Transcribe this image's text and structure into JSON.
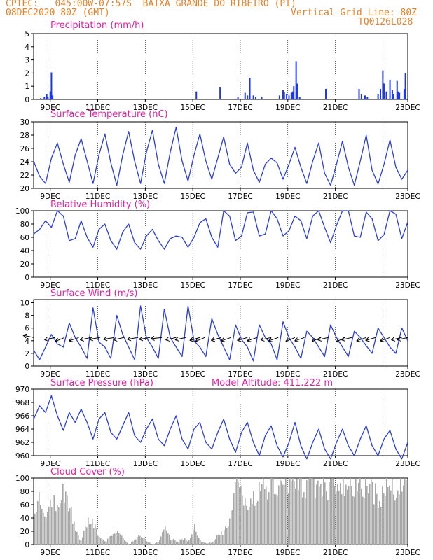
{
  "header": {
    "line1": "CPTEC:   045:00W-07:57S  BAIXA GRANDE DO RIBEIRO (PI)",
    "line2_left": "08DEC2020 80Z (GMT)",
    "line2_right": "Vertical Grid Line: 80Z",
    "line3_right": "TQ0126L028"
  },
  "colors": {
    "header": "#e8822a",
    "title": "#e020a0",
    "line": "#2b3fd6",
    "bars": "#1f38e0",
    "cloud": "#a8a8a8",
    "wind_arrow": "#000000"
  },
  "x_tick_labels": [
    "9DEC",
    "11DEC",
    "13DEC",
    "15DEC",
    "17DEC",
    "19DEC",
    "21DEC",
    "23DEC"
  ],
  "chart_data": [
    {
      "type": "bar",
      "title": "Precipitation (mm/h)",
      "x": "days from 08DEC 08Z, 3-hourly",
      "ylim": [
        0,
        5
      ],
      "yticks": [
        "0",
        "1",
        "2",
        "3",
        "4",
        "5"
      ],
      "points": [
        [
          0.3,
          0.1
        ],
        [
          0.45,
          0.2
        ],
        [
          0.55,
          0.4
        ],
        [
          0.6,
          0.2
        ],
        [
          0.7,
          0.6
        ],
        [
          0.75,
          2.05
        ],
        [
          0.8,
          0.3
        ],
        [
          6.85,
          0.6
        ],
        [
          7.85,
          0.9
        ],
        [
          8.6,
          0.2
        ],
        [
          8.9,
          0.5
        ],
        [
          9.0,
          0.3
        ],
        [
          9.1,
          1.65
        ],
        [
          9.25,
          0.3
        ],
        [
          9.35,
          0.2
        ],
        [
          9.6,
          0.2
        ],
        [
          10.35,
          0.3
        ],
        [
          10.5,
          0.7
        ],
        [
          10.55,
          0.55
        ],
        [
          10.65,
          0.4
        ],
        [
          10.75,
          0.3
        ],
        [
          10.85,
          0.5
        ],
        [
          10.9,
          0.6
        ],
        [
          10.95,
          1.0
        ],
        [
          11.05,
          2.9
        ],
        [
          11.1,
          1.2
        ],
        [
          11.2,
          0.2
        ],
        [
          12.3,
          0.8
        ],
        [
          13.7,
          0.8
        ],
        [
          13.8,
          0.4
        ],
        [
          13.95,
          0.3
        ],
        [
          14.05,
          0.2
        ],
        [
          14.5,
          0.4
        ],
        [
          14.6,
          0.8
        ],
        [
          14.7,
          2.2
        ],
        [
          14.75,
          1.2
        ],
        [
          14.85,
          0.6
        ],
        [
          15.0,
          1.5
        ],
        [
          15.1,
          0.7
        ],
        [
          15.15,
          0.4
        ],
        [
          15.3,
          1.4
        ],
        [
          15.35,
          0.6
        ],
        [
          15.4,
          0.5
        ],
        [
          15.6,
          0.8
        ],
        [
          15.65,
          2.0
        ]
      ]
    },
    {
      "type": "line",
      "title": "Surface Temperature (nC)",
      "ylim": [
        20,
        31
      ],
      "yticks": [
        "20",
        "22",
        "24",
        "26",
        "28",
        "30"
      ],
      "x": [
        0.0,
        0.25,
        0.5,
        0.75,
        1.0,
        1.25,
        1.5,
        1.75,
        2.0,
        2.25,
        2.5,
        2.75,
        3.0,
        3.25,
        3.5,
        3.75,
        4.0,
        4.25,
        4.5,
        4.75,
        5.0,
        5.25,
        5.5,
        5.75,
        6.0,
        6.25,
        6.5,
        6.75,
        7.0,
        7.25,
        7.5,
        7.75,
        8.0,
        8.25,
        8.5,
        8.75,
        9.0,
        9.25,
        9.5,
        9.75,
        10.0,
        10.25,
        10.5,
        10.75,
        11.0,
        11.25,
        11.5,
        11.75,
        12.0,
        12.25,
        12.5,
        12.75,
        13.0,
        13.25,
        13.5,
        13.75,
        14.0,
        14.25,
        14.5,
        14.75,
        15.0,
        15.25,
        15.5,
        15.75
      ],
      "values": [
        24.5,
        22.0,
        20.8,
        25.0,
        27.5,
        24.0,
        21.0,
        25.5,
        28.2,
        24.5,
        20.8,
        25.5,
        29.0,
        24.2,
        20.5,
        25.5,
        29.4,
        24.5,
        20.8,
        26.0,
        29.6,
        24.0,
        20.8,
        26.0,
        30.1,
        24.5,
        21.2,
        25.5,
        29.0,
        24.5,
        21.5,
        25.0,
        28.5,
        24.0,
        22.5,
        23.5,
        27.5,
        23.0,
        21.0,
        24.0,
        25.0,
        24.2,
        21.5,
        24.0,
        26.8,
        23.5,
        20.8,
        24.5,
        27.5,
        22.5,
        20.5,
        24.0,
        27.8,
        23.5,
        20.5,
        24.5,
        28.8,
        23.0,
        20.7,
        24.0,
        28.0,
        23.5,
        21.5,
        23.0
      ]
    },
    {
      "type": "line",
      "title": "Relative Humidity (%)",
      "ylim": [
        0,
        100
      ],
      "yticks": [
        "0",
        "20",
        "40",
        "60",
        "80",
        "100"
      ],
      "x": [
        0.0,
        0.25,
        0.5,
        0.75,
        1.0,
        1.25,
        1.5,
        1.75,
        2.0,
        2.25,
        2.5,
        2.75,
        3.0,
        3.25,
        3.5,
        3.75,
        4.0,
        4.25,
        4.5,
        4.75,
        5.0,
        5.25,
        5.5,
        5.75,
        6.0,
        6.25,
        6.5,
        6.75,
        7.0,
        7.25,
        7.5,
        7.75,
        8.0,
        8.25,
        8.5,
        8.75,
        9.0,
        9.25,
        9.5,
        9.75,
        10.0,
        10.25,
        10.5,
        10.75,
        11.0,
        11.25,
        11.5,
        11.75,
        12.0,
        12.25,
        12.5,
        12.75,
        13.0,
        13.25,
        13.5,
        13.75,
        14.0,
        14.25,
        14.5,
        14.75,
        15.0,
        15.25,
        15.5,
        15.75
      ],
      "values": [
        65,
        72,
        85,
        75,
        100,
        92,
        55,
        58,
        85,
        60,
        45,
        72,
        80,
        55,
        42,
        68,
        80,
        52,
        42,
        62,
        72,
        55,
        42,
        58,
        62,
        60,
        45,
        60,
        82,
        88,
        60,
        45,
        100,
        92,
        55,
        62,
        97,
        98,
        62,
        65,
        100,
        88,
        62,
        70,
        92,
        85,
        58,
        92,
        100,
        75,
        52,
        78,
        100,
        100,
        62,
        60,
        98,
        88,
        55,
        64,
        100,
        95,
        58,
        83
      ]
    },
    {
      "type": "line",
      "title": "Surface Wind (m/s)",
      "ylim": [
        0,
        10.5
      ],
      "yticks": [
        "0",
        "2",
        "4",
        "6",
        "8",
        "10"
      ],
      "x": [
        0.0,
        0.25,
        0.5,
        0.75,
        1.0,
        1.25,
        1.5,
        1.75,
        2.0,
        2.25,
        2.5,
        2.75,
        3.0,
        3.25,
        3.5,
        3.75,
        4.0,
        4.25,
        4.5,
        4.75,
        5.0,
        5.25,
        5.5,
        5.75,
        6.0,
        6.25,
        6.5,
        6.75,
        7.0,
        7.25,
        7.5,
        7.75,
        8.0,
        8.25,
        8.5,
        8.75,
        9.0,
        9.25,
        9.5,
        9.75,
        10.0,
        10.25,
        10.5,
        10.75,
        11.0,
        11.25,
        11.5,
        11.75,
        12.0,
        12.25,
        12.5,
        12.75,
        13.0,
        13.25,
        13.5,
        13.75,
        14.0,
        14.25,
        14.5,
        14.75,
        15.0,
        15.25,
        15.5,
        15.75
      ],
      "values": [
        2.5,
        1.0,
        3.0,
        5.0,
        3.5,
        3.0,
        6.8,
        4.5,
        3.0,
        1.2,
        9.2,
        3.8,
        3.0,
        1.2,
        8.0,
        5.0,
        3.0,
        1.0,
        9.5,
        4.5,
        3.0,
        1.2,
        9.0,
        4.5,
        3.0,
        1.5,
        9.5,
        4.0,
        3.0,
        1.5,
        7.5,
        5.0,
        3.0,
        1.0,
        6.5,
        4.2,
        3.0,
        0.8,
        6.5,
        4.5,
        3.5,
        1.0,
        7.0,
        4.5,
        3.0,
        1.2,
        5.5,
        4.5,
        3.0,
        1.5,
        6.5,
        4.5,
        3.0,
        1.5,
        5.5,
        4.5,
        3.2,
        2.0,
        6.0,
        4.5,
        3.0,
        2.0,
        6.0,
        4.0
      ],
      "arrows": [
        [
          0.0,
          160
        ],
        [
          0.9,
          200
        ],
        [
          1.3,
          215
        ],
        [
          1.9,
          210
        ],
        [
          2.4,
          200
        ],
        [
          2.8,
          195
        ],
        [
          3.4,
          195
        ],
        [
          3.8,
          200
        ],
        [
          4.4,
          195
        ],
        [
          4.9,
          195
        ],
        [
          5.4,
          190
        ],
        [
          6.0,
          200
        ],
        [
          6.4,
          200
        ],
        [
          7.0,
          205
        ],
        [
          7.2,
          215
        ],
        [
          7.9,
          205
        ],
        [
          8.3,
          210
        ],
        [
          9.0,
          205
        ],
        [
          9.4,
          210
        ],
        [
          10.0,
          200
        ],
        [
          10.3,
          210
        ],
        [
          11.0,
          215
        ],
        [
          11.4,
          210
        ],
        [
          12.1,
          215
        ],
        [
          12.4,
          200
        ],
        [
          13.1,
          220
        ],
        [
          13.4,
          200
        ],
        [
          14.0,
          210
        ],
        [
          14.4,
          205
        ],
        [
          15.0,
          210
        ],
        [
          15.5,
          200
        ],
        [
          15.75,
          200
        ]
      ]
    },
    {
      "type": "line",
      "title": "Surface Pressure (hPa)",
      "annotation": "Model Altitude: 411.222 m",
      "ylim": [
        960,
        970
      ],
      "yticks": [
        "960",
        "962",
        "964",
        "966",
        "968",
        "970"
      ],
      "x": [
        0.0,
        0.25,
        0.5,
        0.75,
        1.0,
        1.25,
        1.5,
        1.75,
        2.0,
        2.25,
        2.5,
        2.75,
        3.0,
        3.25,
        3.5,
        3.75,
        4.0,
        4.25,
        4.5,
        4.75,
        5.0,
        5.25,
        5.5,
        5.75,
        6.0,
        6.25,
        6.5,
        6.75,
        7.0,
        7.25,
        7.5,
        7.75,
        8.0,
        8.25,
        8.5,
        8.75,
        9.0,
        9.25,
        9.5,
        9.75,
        10.0,
        10.25,
        10.5,
        10.75,
        11.0,
        11.25,
        11.5,
        11.75,
        12.0,
        12.25,
        12.5,
        12.75,
        13.0,
        13.25,
        13.5,
        13.75,
        14.0,
        14.25,
        14.5,
        14.75,
        15.0,
        15.25,
        15.5,
        15.75
      ],
      "values": [
        965.5,
        967.5,
        966.5,
        969.0,
        966.0,
        963.8,
        966.5,
        965.0,
        967.0,
        965.0,
        962.5,
        965.5,
        966.5,
        963.5,
        962.5,
        964.5,
        966.5,
        963.0,
        962.0,
        964.0,
        965.5,
        962.5,
        961.5,
        964.0,
        966.0,
        962.5,
        961.0,
        964.0,
        965.0,
        962.0,
        961.0,
        963.5,
        965.5,
        962.5,
        960.5,
        963.5,
        965.0,
        962.0,
        960.0,
        963.0,
        964.5,
        961.5,
        959.8,
        962.0,
        965.0,
        961.5,
        959.5,
        962.0,
        964.0,
        961.0,
        959.5,
        962.0,
        964.0,
        961.5,
        960.0,
        962.5,
        964.5,
        961.5,
        960.0,
        962.5,
        963.8,
        961.0,
        959.5,
        962.0
      ]
    },
    {
      "type": "area",
      "title": "Cloud Cover (%)",
      "ylim": [
        0,
        100
      ],
      "yticks": [
        "0",
        "20",
        "40",
        "60",
        "80",
        "100"
      ],
      "x": [
        0.0,
        0.25,
        0.5,
        0.75,
        1.0,
        1.25,
        1.5,
        1.75,
        2.0,
        2.25,
        2.5,
        2.75,
        3.0,
        3.25,
        3.5,
        3.75,
        4.0,
        4.25,
        4.5,
        4.75,
        5.0,
        5.25,
        5.5,
        5.75,
        6.0,
        6.25,
        6.5,
        6.75,
        7.0,
        7.25,
        7.5,
        7.75,
        8.0,
        8.25,
        8.5,
        8.75,
        9.0,
        9.25,
        9.5,
        9.75,
        10.0,
        10.25,
        10.5,
        10.75,
        11.0,
        11.25,
        11.5,
        11.75,
        12.0,
        12.25,
        12.5,
        12.75,
        13.0,
        13.25,
        13.5,
        13.75,
        14.0,
        14.25,
        14.5,
        14.75,
        15.0,
        15.25,
        15.5,
        15.75
      ],
      "values": [
        60,
        75,
        55,
        80,
        65,
        85,
        60,
        20,
        5,
        40,
        35,
        10,
        5,
        15,
        20,
        10,
        0,
        10,
        15,
        5,
        0,
        5,
        30,
        10,
        5,
        10,
        5,
        30,
        5,
        2,
        3,
        15,
        20,
        40,
        90,
        80,
        60,
        75,
        92,
        95,
        95,
        95,
        92,
        98,
        96,
        97,
        98,
        95,
        95,
        95,
        94,
        85,
        92,
        92,
        90,
        96,
        95,
        85,
        75,
        90,
        92,
        88,
        96,
        95
      ]
    }
  ]
}
